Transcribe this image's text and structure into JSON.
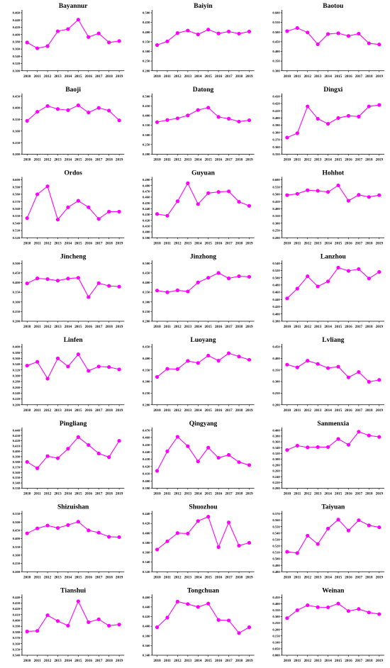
{
  "figure": {
    "x_labels": [
      "2010",
      "2011",
      "2012",
      "2013",
      "2014",
      "2015",
      "2016",
      "2017",
      "2018",
      "2019"
    ],
    "line_color": "#ff00ff",
    "marker_color": "#ff00ff",
    "axis_color": "#000000"
  },
  "chart_data": [
    {
      "type": "line",
      "title": "Bayannur",
      "x": [
        "2010",
        "2011",
        "2012",
        "2013",
        "2014",
        "2015",
        "2016",
        "2017",
        "2018",
        "2019"
      ],
      "yticks": [
        0.3,
        0.32,
        0.34,
        0.36,
        0.38,
        0.4,
        0.42,
        0.44,
        0.46
      ],
      "ylim": [
        0.3,
        0.46
      ],
      "values": [
        0.378,
        0.362,
        0.368,
        0.409,
        0.415,
        0.441,
        0.393,
        0.403,
        0.378,
        0.382
      ]
    },
    {
      "type": "line",
      "title": "Baiyin",
      "x": [
        "2010",
        "2011",
        "2012",
        "2013",
        "2014",
        "2015",
        "2016",
        "2017",
        "2018",
        "2019"
      ],
      "yticks": [
        0.2,
        0.25,
        0.3,
        0.35,
        0.4,
        0.45,
        0.5
      ],
      "ylim": [
        0.2,
        0.5
      ],
      "values": [
        0.333,
        0.352,
        0.395,
        0.408,
        0.388,
        0.413,
        0.393,
        0.403,
        0.392,
        0.403
      ]
    },
    {
      "type": "line",
      "title": "Baotou",
      "x": [
        "2010",
        "2011",
        "2012",
        "2013",
        "2014",
        "2015",
        "2016",
        "2017",
        "2018",
        "2019"
      ],
      "yticks": [
        0.3,
        0.35,
        0.4,
        0.45,
        0.5,
        0.55,
        0.6
      ],
      "ylim": [
        0.3,
        0.6
      ],
      "values": [
        0.505,
        0.521,
        0.498,
        0.437,
        0.49,
        0.494,
        0.48,
        0.492,
        0.442,
        0.436
      ]
    },
    {
      "type": "line",
      "title": "Baoji",
      "x": [
        "2010",
        "2011",
        "2012",
        "2013",
        "2014",
        "2015",
        "2016",
        "2017",
        "2018",
        "2019"
      ],
      "yticks": [
        0.2,
        0.25,
        0.3,
        0.35,
        0.4,
        0.45
      ],
      "ylim": [
        0.2,
        0.45
      ],
      "values": [
        0.344,
        0.383,
        0.408,
        0.395,
        0.39,
        0.411,
        0.38,
        0.4,
        0.388,
        0.346
      ]
    },
    {
      "type": "line",
      "title": "Datong",
      "x": [
        "2010",
        "2011",
        "2012",
        "2013",
        "2014",
        "2015",
        "2016",
        "2017",
        "2018",
        "2019"
      ],
      "yticks": [
        0.2,
        0.25,
        0.3,
        0.35,
        0.4,
        0.45,
        0.5
      ],
      "ylim": [
        0.2,
        0.5
      ],
      "values": [
        0.366,
        0.377,
        0.386,
        0.401,
        0.429,
        0.441,
        0.393,
        0.384,
        0.369,
        0.376
      ]
    },
    {
      "type": "line",
      "title": "Dingxi",
      "x": [
        "2010",
        "2011",
        "2012",
        "2013",
        "2014",
        "2015",
        "2016",
        "2017",
        "2018",
        "2019"
      ],
      "yticks": [
        0.35,
        0.36,
        0.37,
        0.38,
        0.39,
        0.4,
        0.41,
        0.42,
        0.43
      ],
      "ylim": [
        0.35,
        0.43
      ],
      "values": [
        0.373,
        0.379,
        0.416,
        0.399,
        0.392,
        0.4,
        0.403,
        0.402,
        0.416,
        0.418
      ]
    },
    {
      "type": "line",
      "title": "Ordos",
      "x": [
        "2010",
        "2011",
        "2012",
        "2013",
        "2014",
        "2015",
        "2016",
        "2017",
        "2018",
        "2019"
      ],
      "yticks": [
        0.52,
        0.53,
        0.54,
        0.55,
        0.56,
        0.57,
        0.58,
        0.59,
        0.6
      ],
      "ylim": [
        0.52,
        0.6
      ],
      "values": [
        0.547,
        0.58,
        0.591,
        0.545,
        0.562,
        0.571,
        0.562,
        0.546,
        0.556,
        0.556
      ]
    },
    {
      "type": "line",
      "title": "Guyuan",
      "x": [
        "2010",
        "2011",
        "2012",
        "2013",
        "2014",
        "2015",
        "2016",
        "2017",
        "2018",
        "2019"
      ],
      "yticks": [
        0.39,
        0.4,
        0.41,
        0.42,
        0.43,
        0.44,
        0.45,
        0.46,
        0.47,
        0.48,
        0.49
      ],
      "ylim": [
        0.39,
        0.49
      ],
      "values": [
        0.431,
        0.428,
        0.453,
        0.484,
        0.448,
        0.467,
        0.469,
        0.47,
        0.452,
        0.445
      ]
    },
    {
      "type": "line",
      "title": "Hohhot",
      "x": [
        "2010",
        "2011",
        "2012",
        "2013",
        "2014",
        "2015",
        "2016",
        "2017",
        "2018",
        "2019"
      ],
      "yticks": [
        0.2,
        0.25,
        0.3,
        0.35,
        0.4,
        0.45,
        0.5,
        0.55,
        0.6
      ],
      "ylim": [
        0.2,
        0.6
      ],
      "values": [
        0.494,
        0.503,
        0.528,
        0.524,
        0.516,
        0.561,
        0.455,
        0.496,
        0.481,
        0.494
      ]
    },
    {
      "type": "line",
      "title": "Jincheng",
      "x": [
        "2010",
        "2011",
        "2012",
        "2013",
        "2014",
        "2015",
        "2016",
        "2017",
        "2018",
        "2019"
      ],
      "yticks": [
        0.2,
        0.25,
        0.3,
        0.35,
        0.4,
        0.45,
        0.5
      ],
      "ylim": [
        0.2,
        0.5
      ],
      "values": [
        0.396,
        0.422,
        0.418,
        0.41,
        0.421,
        0.425,
        0.325,
        0.397,
        0.383,
        0.379
      ]
    },
    {
      "type": "line",
      "title": "Jinzhong",
      "x": [
        "2010",
        "2011",
        "2012",
        "2013",
        "2014",
        "2015",
        "2016",
        "2017",
        "2018",
        "2019"
      ],
      "yticks": [
        0.2,
        0.25,
        0.3,
        0.35,
        0.4,
        0.45,
        0.5
      ],
      "ylim": [
        0.2,
        0.5
      ],
      "values": [
        0.359,
        0.35,
        0.36,
        0.354,
        0.401,
        0.425,
        0.45,
        0.422,
        0.433,
        0.43
      ]
    },
    {
      "type": "line",
      "title": "Lanzhou",
      "x": [
        "2010",
        "2011",
        "2012",
        "2013",
        "2014",
        "2015",
        "2016",
        "2017",
        "2018",
        "2019"
      ],
      "yticks": [
        0.38,
        0.4,
        0.42,
        0.44,
        0.46,
        0.48,
        0.5,
        0.52,
        0.54
      ],
      "ylim": [
        0.38,
        0.54
      ],
      "values": [
        0.443,
        0.47,
        0.504,
        0.476,
        0.49,
        0.528,
        0.519,
        0.524,
        0.498,
        0.516
      ]
    },
    {
      "type": "line",
      "title": "Linfen",
      "x": [
        "2010",
        "2011",
        "2012",
        "2013",
        "2014",
        "2015",
        "2016",
        "2017",
        "2018",
        "2019"
      ],
      "yticks": [
        0.2,
        0.22,
        0.24,
        0.26,
        0.28,
        0.3,
        0.32,
        0.34,
        0.36,
        0.38,
        0.4
      ],
      "ylim": [
        0.2,
        0.4
      ],
      "values": [
        0.335,
        0.348,
        0.29,
        0.36,
        0.332,
        0.374,
        0.317,
        0.332,
        0.33,
        0.322
      ]
    },
    {
      "type": "line",
      "title": "Luoyang",
      "x": [
        "2010",
        "2011",
        "2012",
        "2013",
        "2014",
        "2015",
        "2016",
        "2017",
        "2018",
        "2019"
      ],
      "yticks": [
        0.2,
        0.25,
        0.3,
        0.35,
        0.4,
        0.45
      ],
      "ylim": [
        0.2,
        0.45
      ],
      "values": [
        0.32,
        0.355,
        0.354,
        0.389,
        0.38,
        0.412,
        0.39,
        0.422,
        0.408,
        0.394
      ]
    },
    {
      "type": "line",
      "title": "Lvliang",
      "x": [
        "2010",
        "2011",
        "2012",
        "2013",
        "2014",
        "2015",
        "2016",
        "2017",
        "2018",
        "2019"
      ],
      "yticks": [
        0.2,
        0.25,
        0.3,
        0.35,
        0.4,
        0.45
      ],
      "ylim": [
        0.2,
        0.45
      ],
      "values": [
        0.373,
        0.361,
        0.39,
        0.376,
        0.358,
        0.364,
        0.318,
        0.341,
        0.299,
        0.307
      ]
    },
    {
      "type": "line",
      "title": "Pingliang",
      "x": [
        "2010",
        "2011",
        "2012",
        "2013",
        "2014",
        "2015",
        "2016",
        "2017",
        "2018",
        "2019"
      ],
      "yticks": [
        0.33,
        0.34,
        0.35,
        0.36,
        0.37,
        0.38,
        0.39,
        0.4,
        0.41,
        0.42,
        0.43,
        0.44
      ],
      "ylim": [
        0.33,
        0.44
      ],
      "values": [
        0.38,
        0.368,
        0.391,
        0.387,
        0.405,
        0.427,
        0.412,
        0.396,
        0.389,
        0.42
      ]
    },
    {
      "type": "line",
      "title": "Qingyang",
      "x": [
        "2010",
        "2011",
        "2012",
        "2013",
        "2014",
        "2015",
        "2016",
        "2017",
        "2018",
        "2019"
      ],
      "yticks": [
        0.39,
        0.4,
        0.41,
        0.42,
        0.43,
        0.44,
        0.45,
        0.46,
        0.47
      ],
      "ylim": [
        0.39,
        0.47
      ],
      "values": [
        0.414,
        0.441,
        0.461,
        0.448,
        0.427,
        0.446,
        0.432,
        0.436,
        0.426,
        0.422
      ]
    },
    {
      "type": "line",
      "title": "Sanmenxia",
      "x": [
        "2010",
        "2011",
        "2012",
        "2013",
        "2014",
        "2015",
        "2016",
        "2017",
        "2018",
        "2019"
      ],
      "yticks": [
        0.2,
        0.22,
        0.24,
        0.26,
        0.28,
        0.3,
        0.32,
        0.34,
        0.36,
        0.38,
        0.4
      ],
      "ylim": [
        0.2,
        0.4
      ],
      "values": [
        0.332,
        0.347,
        0.341,
        0.342,
        0.342,
        0.37,
        0.35,
        0.395,
        0.382,
        0.377
      ]
    },
    {
      "type": "line",
      "title": "Shizuishan",
      "x": [
        "2010",
        "2011",
        "2012",
        "2013",
        "2014",
        "2015",
        "2016",
        "2017",
        "2018",
        "2019"
      ],
      "yticks": [
        0.2,
        0.25,
        0.3,
        0.35,
        0.4,
        0.45,
        0.5,
        0.55
      ],
      "ylim": [
        0.2,
        0.55
      ],
      "values": [
        0.432,
        0.462,
        0.479,
        0.464,
        0.482,
        0.502,
        0.45,
        0.436,
        0.411,
        0.409
      ]
    },
    {
      "type": "line",
      "title": "Shuozhou",
      "x": [
        "2010",
        "2011",
        "2012",
        "2013",
        "2014",
        "2015",
        "2016",
        "2017",
        "2018",
        "2019"
      ],
      "yticks": [
        0.32,
        0.34,
        0.36,
        0.38,
        0.4,
        0.42,
        0.44
      ],
      "ylim": [
        0.32,
        0.44
      ],
      "values": [
        0.366,
        0.383,
        0.4,
        0.399,
        0.425,
        0.434,
        0.371,
        0.422,
        0.374,
        0.38
      ]
    },
    {
      "type": "line",
      "title": "Taiyuan",
      "x": [
        "2010",
        "2011",
        "2012",
        "2013",
        "2014",
        "2015",
        "2016",
        "2017",
        "2018",
        "2019"
      ],
      "yticks": [
        0.48,
        0.49,
        0.5,
        0.51,
        0.52,
        0.53,
        0.54,
        0.55,
        0.56,
        0.57
      ],
      "ylim": [
        0.48,
        0.57
      ],
      "values": [
        0.511,
        0.509,
        0.536,
        0.523,
        0.547,
        0.561,
        0.544,
        0.56,
        0.552,
        0.549
      ]
    },
    {
      "type": "line",
      "title": "Tianshui",
      "x": [
        "2010",
        "2011",
        "2012",
        "2013",
        "2014",
        "2015",
        "2016",
        "2017",
        "2018",
        "2019"
      ],
      "yticks": [
        0.34,
        0.35,
        0.36,
        0.37,
        0.38,
        0.39,
        0.4,
        0.41,
        0.42,
        0.43,
        0.44
      ],
      "ylim": [
        0.34,
        0.44
      ],
      "values": [
        0.381,
        0.382,
        0.409,
        0.399,
        0.391,
        0.433,
        0.397,
        0.402,
        0.391,
        0.393
      ]
    },
    {
      "type": "line",
      "title": "Tongchuan",
      "x": [
        "2010",
        "2011",
        "2012",
        "2013",
        "2014",
        "2015",
        "2016",
        "2017",
        "2018",
        "2019"
      ],
      "yticks": [
        0.34,
        0.36,
        0.38,
        0.4,
        0.42,
        0.44,
        0.46
      ],
      "ylim": [
        0.34,
        0.46
      ],
      "values": [
        0.398,
        0.418,
        0.451,
        0.446,
        0.44,
        0.447,
        0.413,
        0.412,
        0.386,
        0.398
      ]
    },
    {
      "type": "line",
      "title": "Weinan",
      "x": [
        "2010",
        "2011",
        "2012",
        "2013",
        "2014",
        "2015",
        "2016",
        "2017",
        "2018",
        "2019"
      ],
      "yticks": [
        0.0,
        0.05,
        0.1,
        0.15,
        0.2,
        0.25,
        0.3,
        0.35,
        0.4,
        0.45
      ],
      "ylim": [
        0.0,
        0.45
      ],
      "values": [
        0.288,
        0.35,
        0.388,
        0.373,
        0.372,
        0.401,
        0.343,
        0.359,
        0.332,
        0.319
      ]
    }
  ]
}
